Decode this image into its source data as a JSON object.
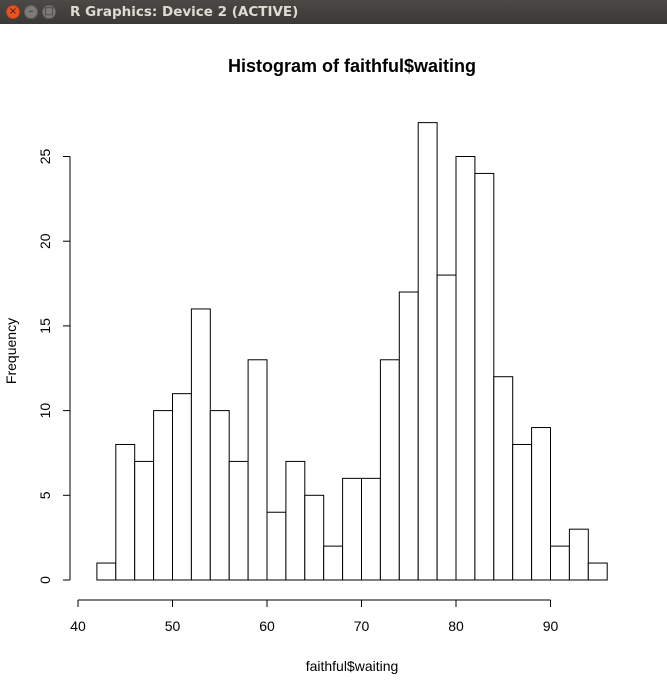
{
  "window": {
    "title": "R Graphics: Device 2 (ACTIVE)",
    "close_glyph": "×",
    "minimize_glyph": "–",
    "maximize_glyph": "□",
    "icons": {
      "close": "close-icon",
      "minimize": "minimize-icon",
      "maximize": "maximize-icon"
    }
  },
  "chart_data": {
    "type": "bar",
    "title": "Histogram of faithful$waiting",
    "xlabel": "faithful$waiting",
    "ylabel": "Frequency",
    "bin_width": 2,
    "bins": [
      {
        "from": 42,
        "to": 44,
        "count": 1
      },
      {
        "from": 44,
        "to": 46,
        "count": 8
      },
      {
        "from": 46,
        "to": 48,
        "count": 7
      },
      {
        "from": 48,
        "to": 50,
        "count": 10
      },
      {
        "from": 50,
        "to": 52,
        "count": 11
      },
      {
        "from": 52,
        "to": 54,
        "count": 16
      },
      {
        "from": 54,
        "to": 56,
        "count": 10
      },
      {
        "from": 56,
        "to": 58,
        "count": 7
      },
      {
        "from": 58,
        "to": 60,
        "count": 13
      },
      {
        "from": 60,
        "to": 62,
        "count": 4
      },
      {
        "from": 62,
        "to": 64,
        "count": 7
      },
      {
        "from": 64,
        "to": 66,
        "count": 5
      },
      {
        "from": 66,
        "to": 68,
        "count": 2
      },
      {
        "from": 68,
        "to": 70,
        "count": 6
      },
      {
        "from": 70,
        "to": 72,
        "count": 6
      },
      {
        "from": 72,
        "to": 74,
        "count": 13
      },
      {
        "from": 74,
        "to": 76,
        "count": 17
      },
      {
        "from": 76,
        "to": 78,
        "count": 27
      },
      {
        "from": 78,
        "to": 80,
        "count": 18
      },
      {
        "from": 80,
        "to": 82,
        "count": 25
      },
      {
        "from": 82,
        "to": 84,
        "count": 24
      },
      {
        "from": 84,
        "to": 86,
        "count": 12
      },
      {
        "from": 86,
        "to": 88,
        "count": 8
      },
      {
        "from": 88,
        "to": 90,
        "count": 9
      },
      {
        "from": 90,
        "to": 92,
        "count": 2
      },
      {
        "from": 92,
        "to": 94,
        "count": 3
      },
      {
        "from": 94,
        "to": 96,
        "count": 1
      }
    ],
    "xlim": [
      40,
      90
    ],
    "xticks": [
      40,
      50,
      60,
      70,
      80,
      90
    ],
    "ylim": [
      0,
      25
    ],
    "yticks": [
      0,
      5,
      10,
      15,
      20,
      25
    ],
    "grid": false,
    "legend": "none",
    "bar_fill": "#ffffff",
    "bar_stroke": "#000000"
  }
}
